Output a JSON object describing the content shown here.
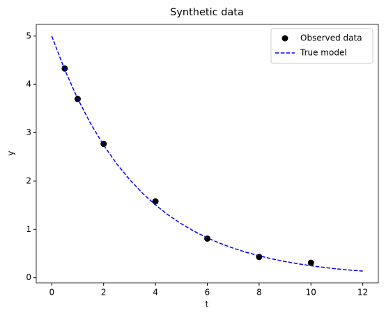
{
  "chart_data": {
    "type": "line",
    "title": "Synthetic data",
    "x_label": "t",
    "y_label": "y",
    "xlim": [
      -0.6,
      12.6
    ],
    "ylim": [
      -0.106,
      5.243
    ],
    "xticks": [
      0,
      2,
      4,
      6,
      8,
      10,
      12
    ],
    "yticks": [
      0,
      1,
      2,
      3,
      4,
      5
    ],
    "grid": false,
    "legend": "upper right",
    "series": [
      {
        "name": "Observed data",
        "type": "scatter",
        "color": "#000000",
        "x": [
          0.5,
          1,
          2,
          4,
          6,
          8,
          10
        ],
        "values": [
          4.33,
          3.7,
          2.77,
          1.58,
          0.81,
          0.43,
          0.31
        ]
      },
      {
        "name": "True model",
        "type": "line",
        "style": "dashed",
        "color": "#0000ff",
        "x": [
          0,
          0.5,
          1,
          1.5,
          2,
          2.5,
          3,
          3.5,
          4,
          4.5,
          5,
          5.5,
          6,
          6.5,
          7,
          7.5,
          8,
          8.5,
          9,
          9.5,
          10,
          10.5,
          11,
          11.5,
          12
        ],
        "values": [
          5.0,
          4.304,
          3.704,
          3.188,
          2.744,
          2.362,
          2.033,
          1.75,
          1.506,
          1.296,
          1.116,
          0.96,
          0.826,
          0.711,
          0.612,
          0.527,
          0.454,
          0.39,
          0.336,
          0.289,
          0.249,
          0.214,
          0.184,
          0.159,
          0.137
        ]
      }
    ]
  }
}
